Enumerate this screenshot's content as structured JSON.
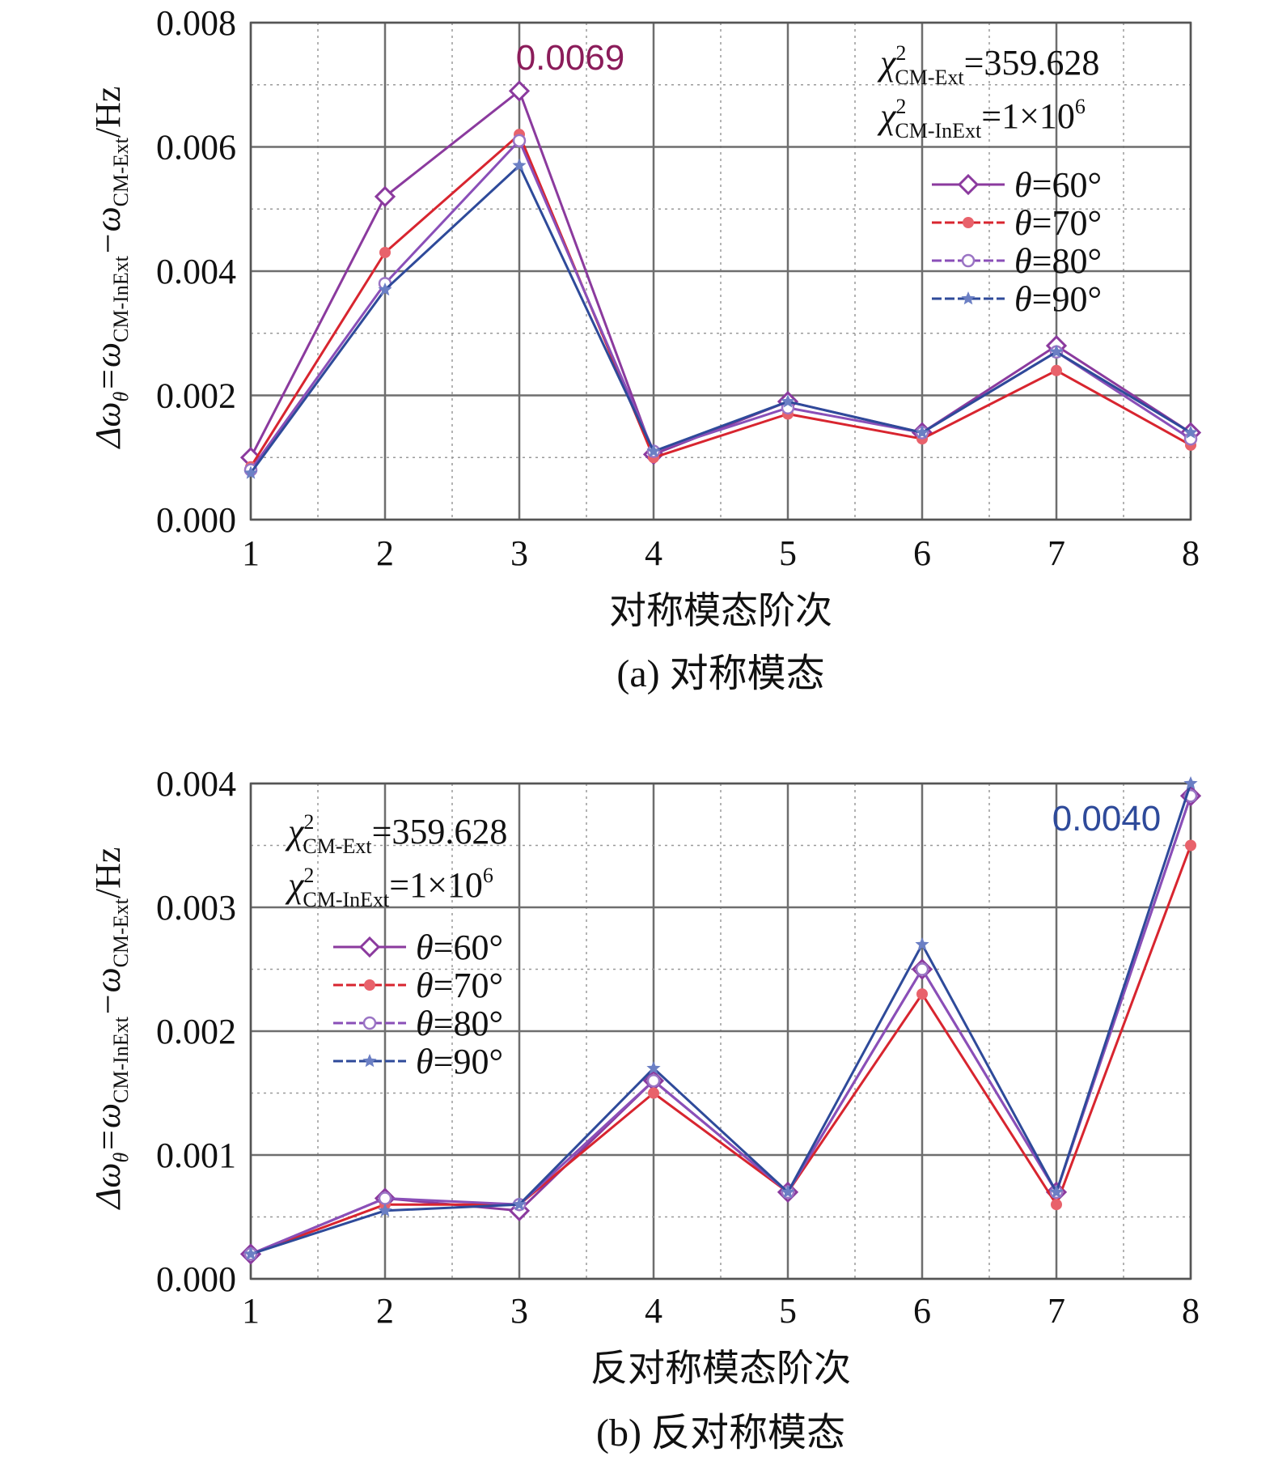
{
  "chart_data": [
    {
      "type": "line",
      "caption": "(a) 对称模态",
      "xlabel": "对称模态阶次",
      "ylabel_parts": {
        "lhs": "Δω",
        "lhs_sub": "θ",
        "eq": "=ω",
        "sub1": "CM-InExt",
        "mid": "−ω",
        "sub2": "CM-Ext",
        "unit": "/Hz"
      },
      "x": [
        1,
        2,
        3,
        4,
        5,
        6,
        7,
        8
      ],
      "x_tick_labels": [
        "1",
        "2",
        "3",
        "4",
        "5",
        "6",
        "7",
        "8"
      ],
      "ylim": [
        0,
        0.008
      ],
      "y_ticks": [
        0,
        0.002,
        0.004,
        0.006,
        0.008
      ],
      "y_tick_labels": [
        "0.000",
        "0.002",
        "0.004",
        "0.006",
        "0.008"
      ],
      "grid": true,
      "series": [
        {
          "name": "θ=60°",
          "values": [
            0.001,
            0.0052,
            0.0069,
            0.00105,
            0.0019,
            0.0014,
            0.0028,
            0.0014
          ],
          "color": "#8B3A9E",
          "marker": "diamond"
        },
        {
          "name": "θ=70°",
          "values": [
            0.00085,
            0.0043,
            0.0062,
            0.001,
            0.0017,
            0.0013,
            0.0024,
            0.0012
          ],
          "color": "#D8252F",
          "marker": "dot"
        },
        {
          "name": "θ=80°",
          "values": [
            0.0008,
            0.0038,
            0.0061,
            0.0011,
            0.0018,
            0.0014,
            0.0027,
            0.0013
          ],
          "color": "#8A4FB8",
          "marker": "circle"
        },
        {
          "name": "θ=90°",
          "values": [
            0.00075,
            0.0037,
            0.0057,
            0.0011,
            0.0019,
            0.0014,
            0.0027,
            0.0014
          ],
          "color": "#2E4A9A",
          "marker": "star"
        }
      ],
      "peak_label": {
        "text": "0.0069",
        "color": "#8B1C5A"
      },
      "chi": {
        "line1_value": "=359.628",
        "line2_value": "=1×10",
        "line2_exp": "6",
        "sym": "χ",
        "sup": "2",
        "sub1": "CM-Ext",
        "sub2": "CM-InExt"
      },
      "legend": "top-right"
    },
    {
      "type": "line",
      "caption": "(b) 反对称模态",
      "xlabel": "反对称模态阶次",
      "ylabel_parts": {
        "lhs": "Δω",
        "lhs_sub": "θ",
        "eq": "=ω",
        "sub1": "CM-InExt",
        "mid": "−ω",
        "sub2": "CM-Ext",
        "unit": "/Hz"
      },
      "x": [
        1,
        2,
        3,
        4,
        5,
        6,
        7,
        8
      ],
      "x_tick_labels": [
        "1",
        "2",
        "3",
        "4",
        "5",
        "6",
        "7",
        "8"
      ],
      "ylim": [
        0,
        0.004
      ],
      "y_ticks": [
        0,
        0.001,
        0.002,
        0.003,
        0.004
      ],
      "y_tick_labels": [
        "0.000",
        "0.001",
        "0.002",
        "0.003",
        "0.004"
      ],
      "grid": true,
      "series": [
        {
          "name": "θ=60°",
          "values": [
            0.0002,
            0.00065,
            0.00055,
            0.0016,
            0.0007,
            0.0025,
            0.0007,
            0.0039
          ],
          "color": "#8B3A9E",
          "marker": "diamond"
        },
        {
          "name": "θ=70°",
          "values": [
            0.0002,
            0.0006,
            0.0006,
            0.0015,
            0.0007,
            0.0023,
            0.0006,
            0.0035
          ],
          "color": "#D8252F",
          "marker": "dot"
        },
        {
          "name": "θ=80°",
          "values": [
            0.0002,
            0.00065,
            0.0006,
            0.0016,
            0.0007,
            0.0025,
            0.0007,
            0.0039
          ],
          "color": "#8A4FB8",
          "marker": "circle"
        },
        {
          "name": "θ=90°",
          "values": [
            0.0002,
            0.00055,
            0.0006,
            0.0017,
            0.0007,
            0.0027,
            0.0007,
            0.004
          ],
          "color": "#2E4A9A",
          "marker": "star"
        }
      ],
      "peak_label": {
        "text": "0.0040",
        "color": "#2E4A9A"
      },
      "chi": {
        "line1_value": "=359.628",
        "line2_value": "=1×10",
        "line2_exp": "6",
        "sym": "χ",
        "sup": "2",
        "sub1": "CM-Ext",
        "sub2": "CM-InExt"
      },
      "legend": "top-left"
    }
  ]
}
